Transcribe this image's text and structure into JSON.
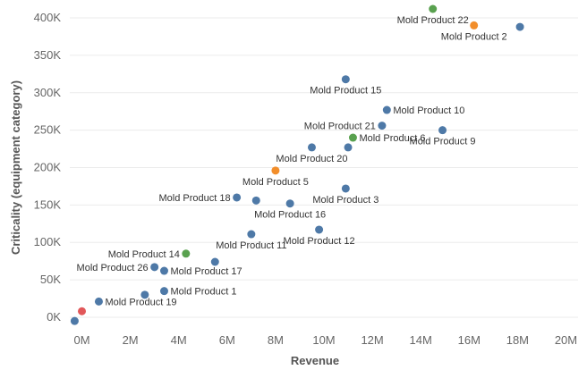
{
  "colors": {
    "blue": "#4e79a7",
    "orange": "#f28e2b",
    "green": "#59a14f",
    "red": "#e15759"
  },
  "chart_data": {
    "type": "scatter",
    "xlabel": "Revenue",
    "ylabel": "Criticality (equipment category)",
    "xlim": [
      -0.5,
      20.5
    ],
    "ylim": [
      -12,
      412
    ],
    "x_unit": "M",
    "y_unit": "K",
    "x_ticks": [
      {
        "value": 0,
        "label": "0M"
      },
      {
        "value": 2,
        "label": "2M"
      },
      {
        "value": 4,
        "label": "4M"
      },
      {
        "value": 6,
        "label": "6M"
      },
      {
        "value": 8,
        "label": "8M"
      },
      {
        "value": 10,
        "label": "10M"
      },
      {
        "value": 12,
        "label": "12M"
      },
      {
        "value": 14,
        "label": "14M"
      },
      {
        "value": 16,
        "label": "16M"
      },
      {
        "value": 18,
        "label": "18M"
      },
      {
        "value": 20,
        "label": "20M"
      }
    ],
    "y_ticks": [
      {
        "value": 0,
        "label": "0K"
      },
      {
        "value": 50,
        "label": "50K"
      },
      {
        "value": 100,
        "label": "100K"
      },
      {
        "value": 150,
        "label": "150K"
      },
      {
        "value": 200,
        "label": "200K"
      },
      {
        "value": 250,
        "label": "250K"
      },
      {
        "value": 300,
        "label": "300K"
      },
      {
        "value": 350,
        "label": "350K"
      },
      {
        "value": 400,
        "label": "400K"
      }
    ],
    "grid": true,
    "points": [
      {
        "x": -0.3,
        "y": -5,
        "color": "blue",
        "label": ""
      },
      {
        "x": 0.0,
        "y": 8,
        "color": "red",
        "label": ""
      },
      {
        "x": 0.7,
        "y": 21,
        "color": "blue",
        "label": "Mold Product 19",
        "anchor": "start"
      },
      {
        "x": 2.6,
        "y": 30,
        "color": "blue",
        "label": ""
      },
      {
        "x": 3.4,
        "y": 35,
        "color": "blue",
        "label": "Mold Product 1",
        "anchor": "start"
      },
      {
        "x": 3.4,
        "y": 62,
        "color": "blue",
        "label": "Mold Product 17",
        "anchor": "start"
      },
      {
        "x": 3.0,
        "y": 67,
        "color": "blue",
        "label": "Mold Product 26",
        "anchor": "end"
      },
      {
        "x": 4.3,
        "y": 85,
        "color": "green",
        "label": "Mold Product 14",
        "anchor": "end"
      },
      {
        "x": 5.5,
        "y": 74,
        "color": "blue",
        "label": ""
      },
      {
        "x": 7.0,
        "y": 111,
        "color": "blue",
        "label": "Mold Product 11",
        "anchor": "middle"
      },
      {
        "x": 6.4,
        "y": 160,
        "color": "blue",
        "label": "Mold Product 18",
        "anchor": "end"
      },
      {
        "x": 7.2,
        "y": 156,
        "color": "blue",
        "label": ""
      },
      {
        "x": 8.6,
        "y": 152,
        "color": "blue",
        "label": "Mold Product 16",
        "anchor": "middle"
      },
      {
        "x": 9.8,
        "y": 117,
        "color": "blue",
        "label": "Mold Product 12",
        "anchor": "middle"
      },
      {
        "x": 8.0,
        "y": 196,
        "color": "orange",
        "label": "Mold Product 5",
        "anchor": "middle"
      },
      {
        "x": 9.5,
        "y": 227,
        "color": "blue",
        "label": "Mold Product 20",
        "anchor": "middle"
      },
      {
        "x": 10.9,
        "y": 172,
        "color": "blue",
        "label": "Mold Product 3",
        "anchor": "middle"
      },
      {
        "x": 11.0,
        "y": 227,
        "color": "blue",
        "label": ""
      },
      {
        "x": 11.2,
        "y": 240,
        "color": "green",
        "label": "Mold Product 6",
        "anchor": "start"
      },
      {
        "x": 12.4,
        "y": 256,
        "color": "blue",
        "label": "Mold Product 21",
        "anchor": "end"
      },
      {
        "x": 12.6,
        "y": 277,
        "color": "blue",
        "label": "Mold Product 10",
        "anchor": "start"
      },
      {
        "x": 14.9,
        "y": 250,
        "color": "blue",
        "label": "Mold Product 9",
        "anchor": "middle"
      },
      {
        "x": 10.9,
        "y": 318,
        "color": "blue",
        "label": "Mold Product 15",
        "anchor": "middle"
      },
      {
        "x": 14.5,
        "y": 412,
        "color": "green",
        "label": "Mold Product 22",
        "anchor": "middle"
      },
      {
        "x": 16.2,
        "y": 390,
        "color": "orange",
        "label": "Mold Product 2",
        "anchor": "middle"
      },
      {
        "x": 18.1,
        "y": 388,
        "color": "blue",
        "label": ""
      }
    ]
  }
}
